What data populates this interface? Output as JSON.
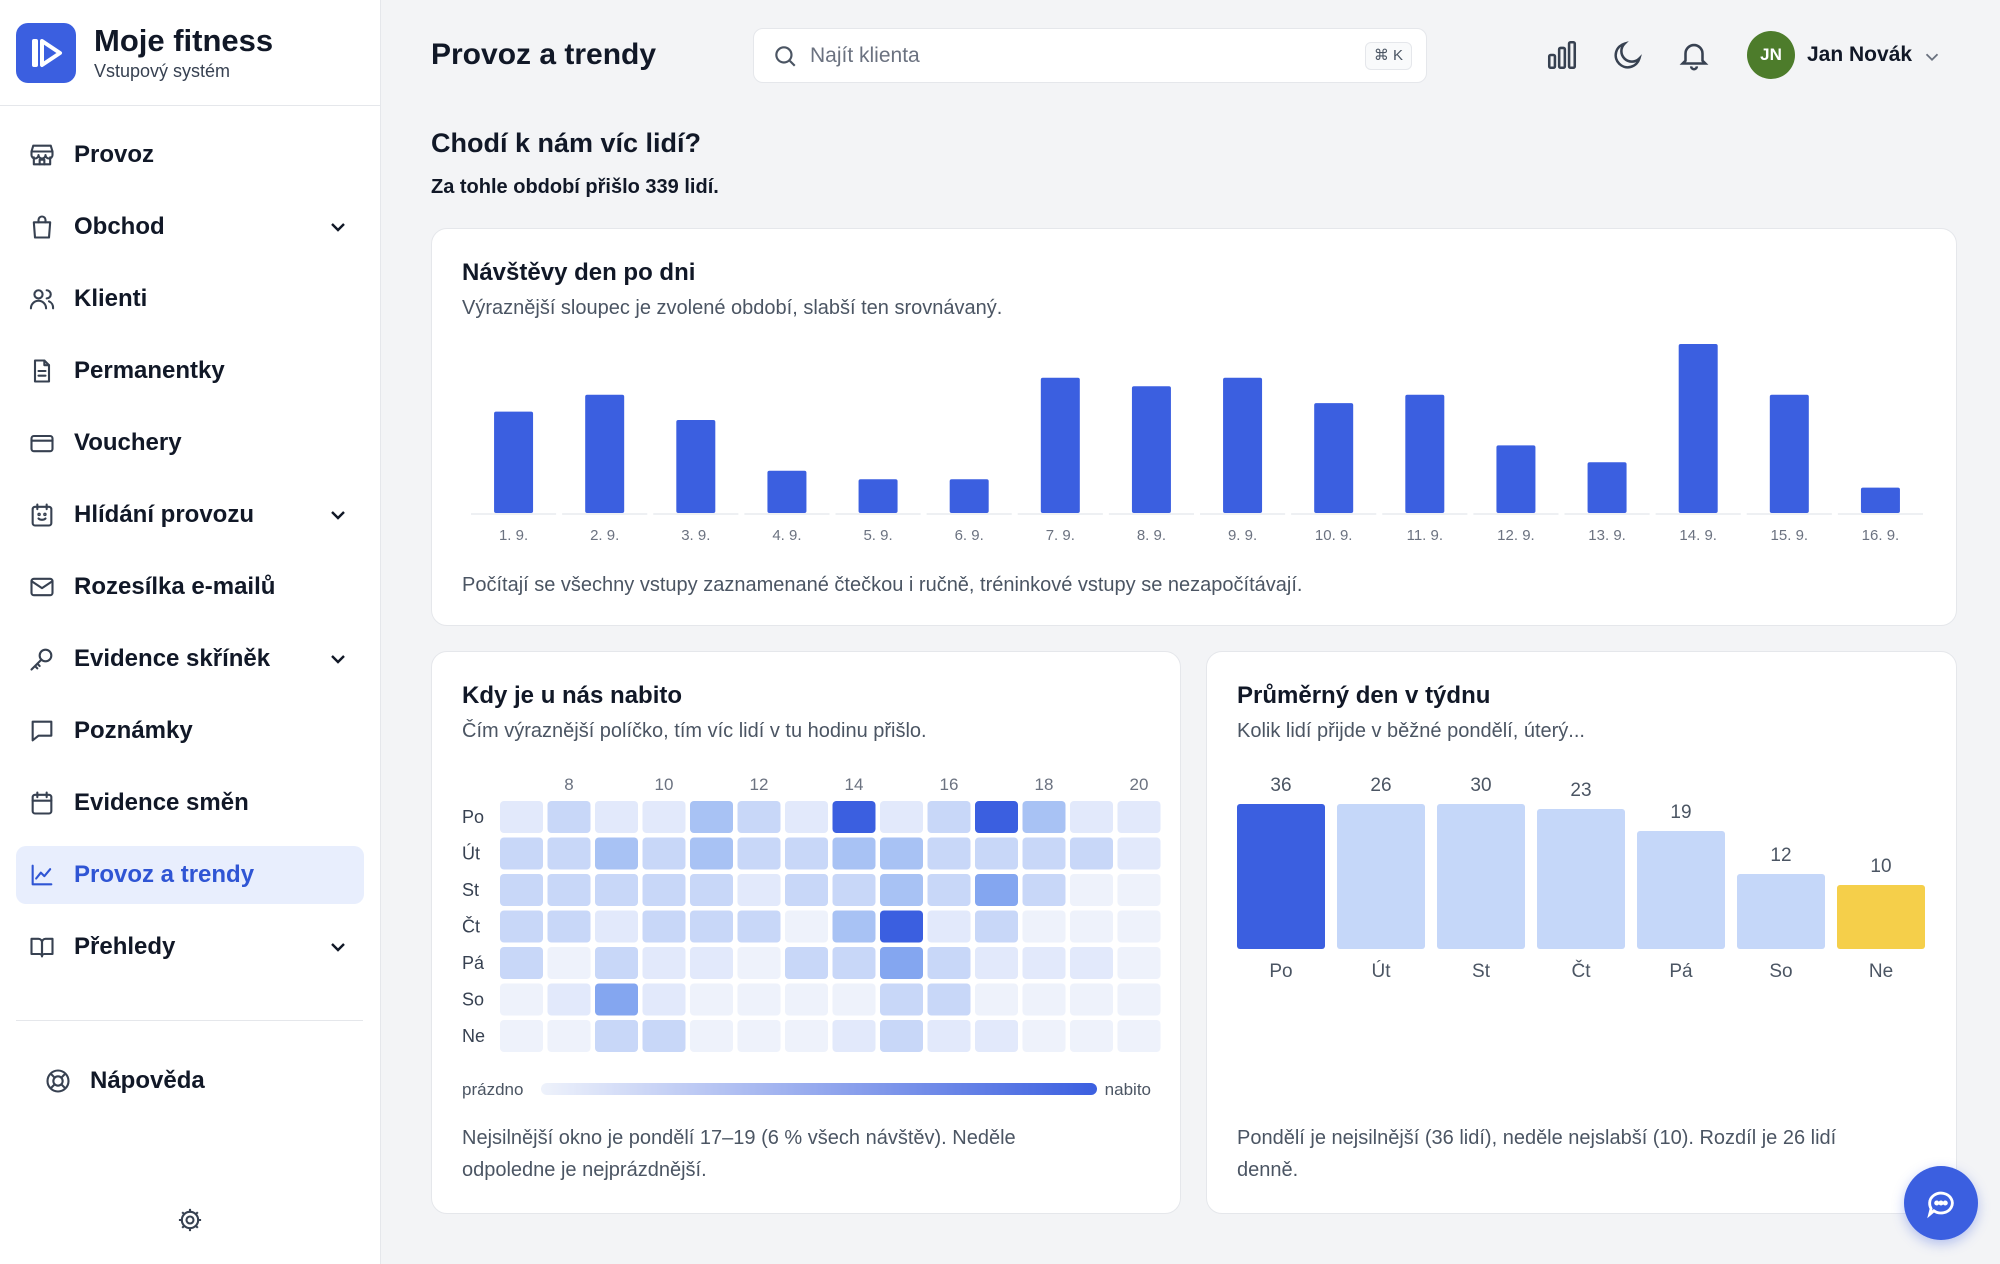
{
  "brand": {
    "name": "Moje fitness",
    "subtitle": "Vstupový systém"
  },
  "sidebar": {
    "items": [
      {
        "label": "Provoz",
        "icon": "store-icon",
        "expandable": false,
        "active": false
      },
      {
        "label": "Obchod",
        "icon": "shopping-bag-icon",
        "expandable": true,
        "active": false
      },
      {
        "label": "Klienti",
        "icon": "users-icon",
        "expandable": false,
        "active": false
      },
      {
        "label": "Permanentky",
        "icon": "document-icon",
        "expandable": false,
        "active": false
      },
      {
        "label": "Vouchery",
        "icon": "credit-card-icon",
        "expandable": false,
        "active": false
      },
      {
        "label": "Hlídání provozu",
        "icon": "calendar-alert-icon",
        "expandable": true,
        "active": false
      },
      {
        "label": "Rozesílka e-mailů",
        "icon": "mail-icon",
        "expandable": false,
        "active": false
      },
      {
        "label": "Evidence skříněk",
        "icon": "key-icon",
        "expandable": true,
        "active": false
      },
      {
        "label": "Poznámky",
        "icon": "message-square-icon",
        "expandable": false,
        "active": false
      },
      {
        "label": "Evidence směn",
        "icon": "calendar-icon",
        "expandable": false,
        "active": false
      },
      {
        "label": "Provoz a trendy",
        "icon": "line-chart-icon",
        "expandable": false,
        "active": true
      },
      {
        "label": "Přehledy",
        "icon": "book-open-icon",
        "expandable": true,
        "active": false
      }
    ],
    "help": {
      "label": "Nápověda",
      "icon": "life-buoy-icon"
    },
    "settings_icon": "gear-icon"
  },
  "header": {
    "title": "Provoz a trendy",
    "search": {
      "placeholder": "Najít klienta",
      "shortcut": "⌘ K"
    },
    "user": {
      "initials": "JN",
      "name": "Jan Novák"
    }
  },
  "main": {
    "heading": "Chodí k nám víc lidí?",
    "summary": "Za tohle období přišlo 339 lidí."
  },
  "colors": {
    "accent": "#3b5fe0",
    "bar_light": "#c5d7f9",
    "highlight_yellow": "#f5cf4a",
    "avatar": "#4d7c2b"
  },
  "cards": {
    "daily": {
      "title": "Návštěvy den po dni",
      "subtitle": "Výraznější sloupec je zvolené období, slabší ten srovnávaný.",
      "note": "Počítají se všechny vstupy zaznamenané čtečkou i ručně, tréninkové vstupy se nezapočítávají."
    },
    "heatmap": {
      "title": "Kdy je u nás nabito",
      "subtitle": "Čím výraznější políčko, tím víc lidí v tu hodinu přišlo.",
      "legend_low": "prázdno",
      "legend_high": "nabito",
      "note_line1": "Nejsilnější okno je pondělí 17–19 (6 % všech návštěv). Neděle",
      "note_line2": "odpoledne je nejprázdnější."
    },
    "weekday": {
      "title": "Průměrný den v týdnu",
      "subtitle": "Kolik lidí přijde v běžné pondělí, úterý...",
      "note_line1": "Pondělí je nejsilnější (36 lidí), neděle nejslabší (10). Rozdíl je 26 lidí",
      "note_line2": "denně."
    }
  },
  "chart_data": [
    {
      "type": "bar",
      "title": "Návštěvy den po dni",
      "categories": [
        "1. 9.",
        "2. 9.",
        "3. 9.",
        "4. 9.",
        "5. 9.",
        "6. 9.",
        "7. 9.",
        "8. 9.",
        "9. 9.",
        "10. 9.",
        "11. 9.",
        "12. 9.",
        "13. 9.",
        "14. 9.",
        "15. 9.",
        "16. 9."
      ],
      "series": [
        {
          "values": [
            24,
            28,
            22,
            10,
            8,
            8,
            32,
            30,
            32,
            26,
            28,
            16,
            12,
            40,
            28,
            6
          ]
        },
        {
          "values": [
            0,
            0,
            0,
            0,
            0,
            0,
            0,
            0,
            0,
            0,
            0,
            0,
            0,
            0,
            0,
            0
          ]
        }
      ],
      "ylim": [
        0,
        40
      ],
      "grid": false,
      "legend": "none"
    },
    {
      "type": "heatmap",
      "title": "Kdy je u nás nabito",
      "x": [
        6,
        7,
        8,
        9,
        10,
        11,
        12,
        13,
        14,
        15,
        16,
        17,
        18,
        19
      ],
      "x_tick_labels": [
        "8",
        "10",
        "12",
        "14",
        "16",
        "18",
        "20"
      ],
      "y": [
        "Po",
        "Út",
        "St",
        "Čt",
        "Pá",
        "So",
        "Ne"
      ],
      "values": [
        [
          2,
          3,
          2,
          2,
          5,
          3,
          2,
          7,
          2,
          4,
          7,
          5,
          2,
          2
        ],
        [
          4,
          4,
          5,
          3,
          5,
          3,
          4,
          5,
          5,
          4,
          4,
          3,
          3,
          2
        ],
        [
          4,
          3,
          4,
          3,
          3,
          2,
          3,
          4,
          5,
          4,
          6,
          3,
          1,
          1
        ],
        [
          4,
          3,
          2,
          3,
          3,
          4,
          1,
          5,
          7,
          2,
          3,
          1,
          1,
          1
        ],
        [
          3,
          1,
          3,
          2,
          2,
          1,
          3,
          3,
          6,
          3,
          2,
          2,
          2,
          1
        ],
        [
          1,
          2,
          6,
          2,
          1,
          1,
          1,
          1,
          4,
          3,
          1,
          1,
          1,
          1
        ],
        [
          1,
          1,
          4,
          3,
          1,
          1,
          1,
          2,
          4,
          2,
          2,
          1,
          1,
          1
        ]
      ],
      "scale": [
        0,
        7
      ],
      "legend": "bottom"
    },
    {
      "type": "bar",
      "title": "Průměrný den v týdnu",
      "categories": [
        "Po",
        "Út",
        "St",
        "Čt",
        "Pá",
        "So",
        "Ne"
      ],
      "values": [
        36,
        26,
        30,
        23,
        19,
        12,
        10
      ],
      "value_labels": [
        "36",
        "26",
        "30",
        "23",
        "19",
        "12",
        "10"
      ],
      "highlight": {
        "max": "Po",
        "min": "Ne"
      },
      "legend": "none"
    }
  ]
}
